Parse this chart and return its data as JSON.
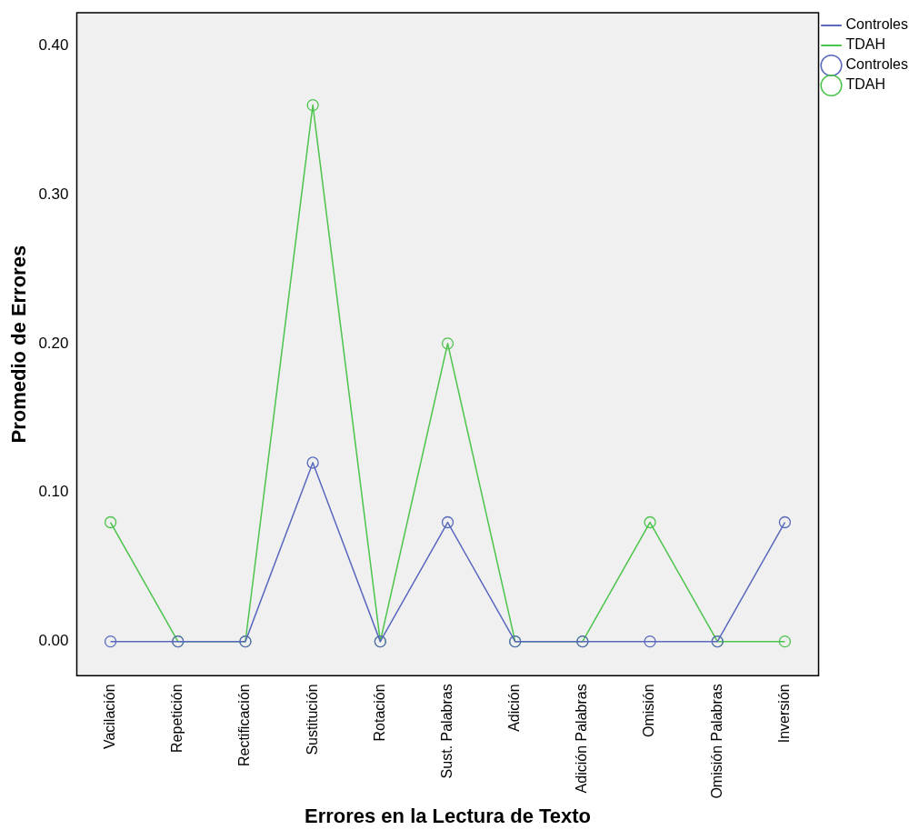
{
  "chart_data": {
    "type": "line",
    "xlabel": "Errores en la Lectura de Texto",
    "ylabel": "Promedio de Errores",
    "categories": [
      "Vacilación",
      "Repetición",
      "Rectificación",
      "Sustitución",
      "Rotación",
      "Sust. Palabras",
      "Adición",
      "Adición Palabras",
      "Omisión",
      "Omisión Palabras",
      "Inversión"
    ],
    "series": [
      {
        "name": "Controles",
        "color": "#5a68bd",
        "values": [
          0,
          0,
          0,
          0.12,
          0,
          0.08,
          0,
          0,
          0,
          0,
          0.08
        ]
      },
      {
        "name": "TDAH",
        "color": "#4cc44c",
        "values": [
          0.08,
          0,
          0,
          0.36,
          0,
          0.2,
          0,
          0,
          0.08,
          0,
          0
        ]
      }
    ],
    "ylim": [
      -0.023,
      0.422
    ],
    "yticks": [
      {
        "value": 0,
        "label": "0.00"
      },
      {
        "value": 0.1,
        "label": "0.10"
      },
      {
        "value": 0.2,
        "label": "0.20"
      },
      {
        "value": 0.3,
        "label": "0.30"
      },
      {
        "value": 0.4,
        "label": "0.40"
      }
    ],
    "grid": false,
    "legend": "top right",
    "marker": "circle",
    "line_style": "solid"
  }
}
